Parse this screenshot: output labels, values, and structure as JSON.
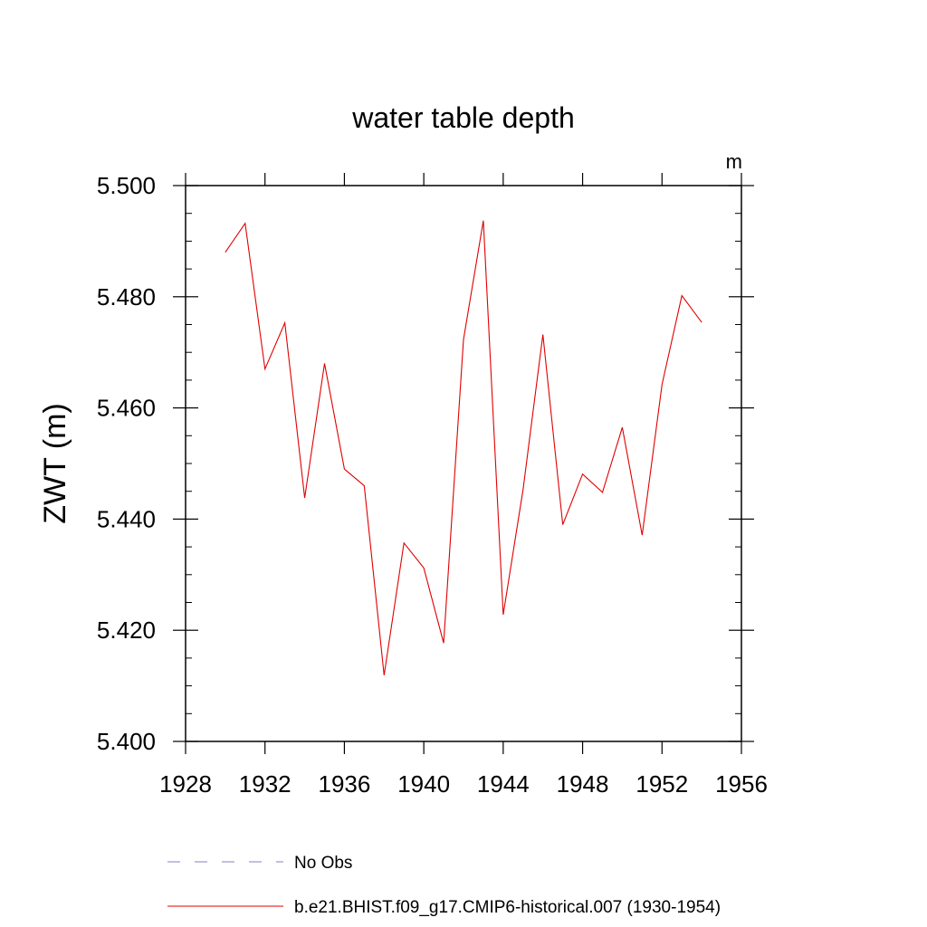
{
  "chart_data": {
    "type": "line",
    "title": "water table depth",
    "units": "m",
    "ylabel": "ZWT  (m)",
    "xlabel": "",
    "xlim": [
      1928,
      1956
    ],
    "ylim": [
      5.4,
      5.5
    ],
    "x_ticks": [
      "1928",
      "1932",
      "1936",
      "1940",
      "1944",
      "1948",
      "1952",
      "1956"
    ],
    "y_ticks": [
      "5.400",
      "5.420",
      "5.440",
      "5.460",
      "5.480",
      "5.500"
    ],
    "grid": false,
    "legend_position": "bottom",
    "legend": [
      {
        "label": "No Obs",
        "color": "#8080c0",
        "style": "dashed"
      },
      {
        "label": "b.e21.BHIST.f09_g17.CMIP6-historical.007 (1930-1954)",
        "color": "#e00000",
        "style": "solid"
      }
    ],
    "series": [
      {
        "color": "#e00000",
        "x": [
          1930,
          1931,
          1932,
          1933,
          1934,
          1935,
          1936,
          1937,
          1938,
          1939,
          1940,
          1941,
          1942,
          1943,
          1944,
          1945,
          1946,
          1947,
          1948,
          1949,
          1950,
          1951,
          1952,
          1953,
          1954
        ],
        "y": [
          5.488,
          5.4932,
          5.467,
          5.4753,
          5.4438,
          5.468,
          5.449,
          5.446,
          5.4119,
          5.4357,
          5.4312,
          5.4177,
          5.4723,
          5.4937,
          5.4228,
          5.4453,
          5.4732,
          5.439,
          5.4481,
          5.4448,
          5.4565,
          5.4371,
          5.4642,
          5.4802,
          5.4754
        ]
      }
    ]
  }
}
